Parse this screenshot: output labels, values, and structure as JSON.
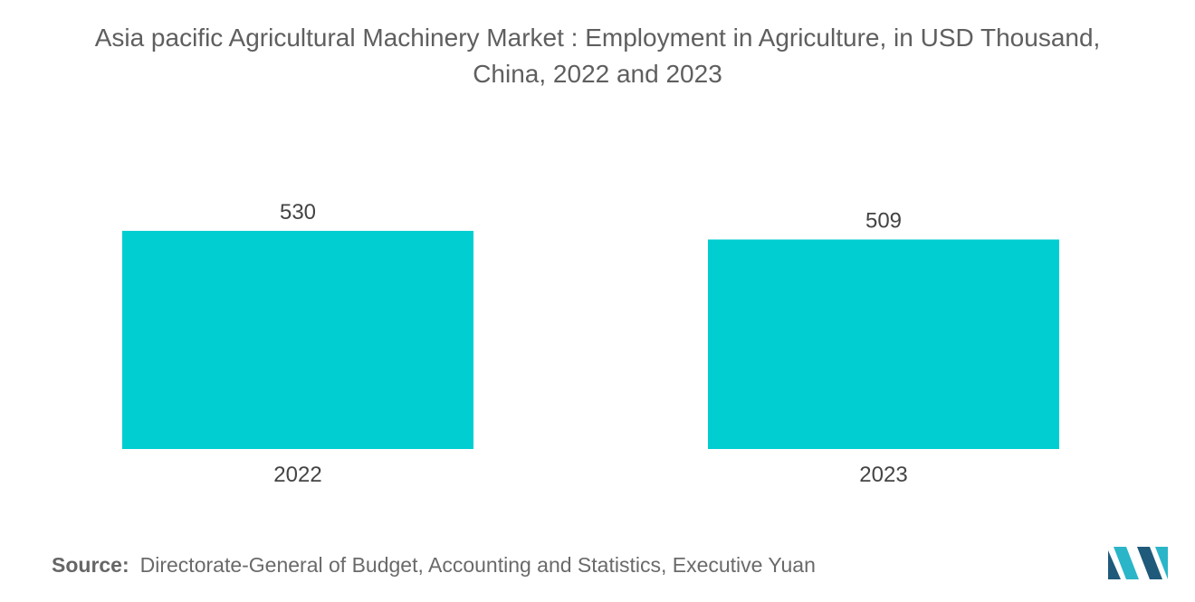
{
  "title": {
    "line1": "Asia pacific Agricultural Machinery Market : Employment in Agriculture, in USD Thousand,",
    "line2": "China, 2022 and 2023"
  },
  "colors": {
    "bar": "#00CED1",
    "logo_dark": "#1F5A7A",
    "logo_light": "#2BB5C8"
  },
  "chart_data": {
    "type": "bar",
    "title": "Asia pacific Agricultural Machinery Market : Employment in Agriculture, in USD Thousand, China, 2022 and 2023",
    "categories": [
      "2022",
      "2023"
    ],
    "values": [
      530,
      509
    ],
    "data_labels": [
      "530",
      "509"
    ],
    "xlabel": "",
    "ylabel": "",
    "ylim": [
      0,
      530
    ],
    "grid": false,
    "legend": "none"
  },
  "source": {
    "label": "Source:",
    "text": "Directorate-General of Budget, Accounting and Statistics, Executive Yuan"
  },
  "logo": {
    "icon": "mordor-intelligence-logo-icon"
  }
}
